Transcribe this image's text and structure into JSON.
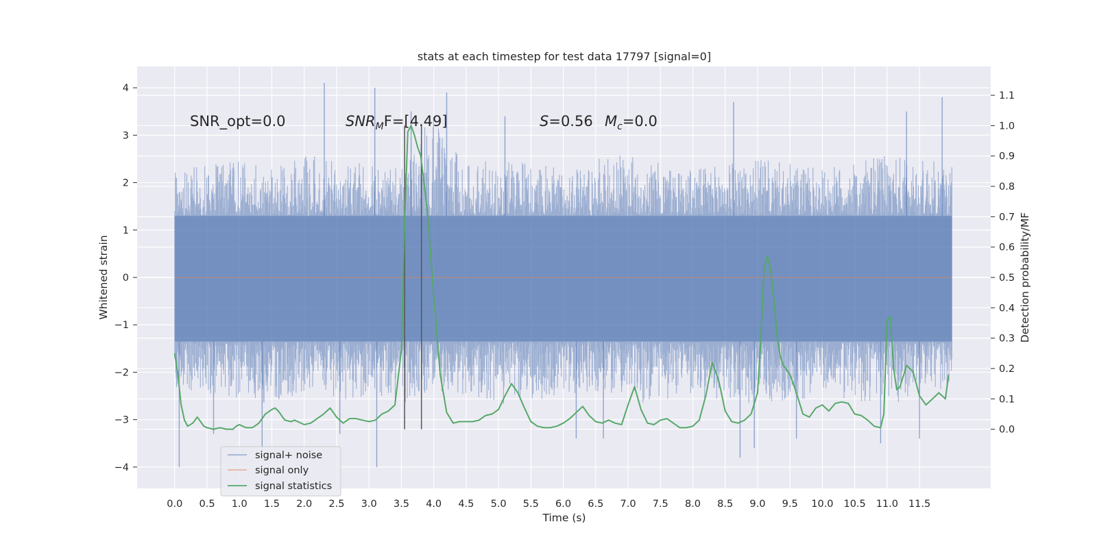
{
  "chart_data": {
    "type": "line",
    "title": "stats at each timestep for test data 17797 [signal=0]",
    "xlabel": "Time (s)",
    "ylabel": "Whitened strain",
    "ylabel_right": "Detection probability/MF",
    "xlim": [
      -0.58,
      12.6
    ],
    "ylim": [
      -4.45,
      4.45
    ],
    "ylim_right": [
      -0.195,
      1.195
    ],
    "x_ticks": [
      "0.0",
      "0.5",
      "1.0",
      "1.5",
      "2.0",
      "2.5",
      "3.0",
      "3.5",
      "4.0",
      "4.5",
      "5.0",
      "5.5",
      "6.0",
      "6.5",
      "7.0",
      "7.5",
      "8.0",
      "8.5",
      "9.0",
      "9.5",
      "10.0",
      "10.5",
      "11.0",
      "11.5"
    ],
    "y_ticks": [
      "−4",
      "−3",
      "−2",
      "−1",
      "0",
      "1",
      "2",
      "3",
      "4"
    ],
    "y_ticks_right": [
      "0.0",
      "0.1",
      "0.2",
      "0.3",
      "0.4",
      "0.5",
      "0.6",
      "0.7",
      "0.8",
      "0.9",
      "1.0",
      "1.1"
    ],
    "grid": true,
    "legend_position": "lower-left",
    "annotations": {
      "snr_opt": "SNR_opt=0.0",
      "snr_mf_main": "SNR",
      "snr_mf_sub": "M",
      "snr_mf_rest": "F=[4.49]",
      "s_label": "S",
      "s_value": "=0.56",
      "mc_main": "M",
      "mc_sub": "c",
      "mc_value": "=0.0"
    },
    "vertical_lines": [
      3.55,
      3.81
    ],
    "series": [
      {
        "name": "signal+ noise",
        "color": "#4c72b0",
        "axis": "left",
        "duration": 12.0,
        "band_low": -1.35,
        "band_high": 1.3,
        "envelope_high": [
          2.3,
          2.4,
          2.5,
          2.3,
          2.6,
          2.5,
          2.4,
          2.3,
          3.5,
          2.4,
          2.5,
          2.4,
          2.3,
          2.5,
          2.6,
          2.4,
          2.3,
          2.4,
          2.5,
          2.4,
          2.3,
          2.4,
          2.6,
          2.5,
          2.4
        ],
        "envelope_low": [
          -2.3,
          -2.5,
          -2.6,
          -2.7,
          -2.4,
          -2.6,
          -2.5,
          -2.7,
          -2.4,
          -2.5,
          -2.7,
          -2.6,
          -2.5,
          -2.4,
          -2.6,
          -2.7,
          -2.5,
          -2.6,
          -2.7,
          -2.6,
          -2.5,
          -2.6,
          -2.7,
          -2.5,
          -2.4
        ],
        "spikes": [
          [
            0.07,
            -4.0
          ],
          [
            0.6,
            -3.3
          ],
          [
            1.35,
            -3.6
          ],
          [
            2.31,
            4.1
          ],
          [
            2.55,
            -3.3
          ],
          [
            3.09,
            4.0
          ],
          [
            3.12,
            -4.0
          ],
          [
            3.65,
            3.5
          ],
          [
            4.2,
            3.9
          ],
          [
            5.1,
            3.4
          ],
          [
            6.2,
            -3.4
          ],
          [
            6.62,
            -3.4
          ],
          [
            8.63,
            3.7
          ],
          [
            8.73,
            -3.8
          ],
          [
            8.95,
            -3.6
          ],
          [
            9.6,
            -3.4
          ],
          [
            10.9,
            -3.5
          ],
          [
            11.3,
            3.5
          ],
          [
            11.5,
            -3.4
          ],
          [
            11.85,
            3.8
          ]
        ]
      },
      {
        "name": "signal only",
        "color": "#dd8452",
        "axis": "left",
        "x": [
          0,
          12
        ],
        "values": [
          0,
          0
        ]
      },
      {
        "name": "signal statistics",
        "color": "#55a868",
        "axis": "right",
        "x": [
          0.0,
          0.05,
          0.1,
          0.15,
          0.2,
          0.28,
          0.35,
          0.45,
          0.5,
          0.6,
          0.7,
          0.8,
          0.9,
          0.95,
          1.0,
          1.05,
          1.1,
          1.2,
          1.3,
          1.4,
          1.5,
          1.55,
          1.6,
          1.7,
          1.8,
          1.85,
          1.9,
          2.0,
          2.1,
          2.2,
          2.3,
          2.4,
          2.5,
          2.6,
          2.7,
          2.8,
          2.9,
          3.0,
          3.1,
          3.2,
          3.3,
          3.4,
          3.5,
          3.55,
          3.6,
          3.65,
          3.7,
          3.75,
          3.8,
          3.9,
          4.0,
          4.1,
          4.2,
          4.3,
          4.4,
          4.5,
          4.6,
          4.7,
          4.8,
          4.9,
          5.0,
          5.1,
          5.2,
          5.3,
          5.4,
          5.5,
          5.6,
          5.7,
          5.8,
          5.9,
          6.0,
          6.1,
          6.2,
          6.3,
          6.4,
          6.5,
          6.6,
          6.7,
          6.8,
          6.9,
          7.0,
          7.1,
          7.2,
          7.3,
          7.4,
          7.5,
          7.6,
          7.7,
          7.8,
          7.9,
          8.0,
          8.1,
          8.2,
          8.3,
          8.4,
          8.5,
          8.6,
          8.7,
          8.8,
          8.9,
          9.0,
          9.05,
          9.1,
          9.15,
          9.2,
          9.25,
          9.3,
          9.35,
          9.4,
          9.5,
          9.6,
          9.7,
          9.8,
          9.9,
          10.0,
          10.1,
          10.2,
          10.3,
          10.4,
          10.5,
          10.6,
          10.7,
          10.8,
          10.9,
          10.95,
          11.0,
          11.05,
          11.1,
          11.15,
          11.2,
          11.3,
          11.4,
          11.5,
          11.6,
          11.7,
          11.8,
          11.9,
          11.95
        ],
        "values": [
          0.25,
          0.18,
          0.08,
          0.03,
          0.01,
          0.02,
          0.04,
          0.01,
          0.005,
          0.0,
          0.005,
          0.0,
          0.0,
          0.01,
          0.015,
          0.01,
          0.005,
          0.005,
          0.02,
          0.05,
          0.065,
          0.07,
          0.06,
          0.03,
          0.025,
          0.03,
          0.025,
          0.015,
          0.02,
          0.035,
          0.05,
          0.07,
          0.04,
          0.02,
          0.035,
          0.035,
          0.03,
          0.025,
          0.03,
          0.05,
          0.06,
          0.08,
          0.26,
          0.68,
          0.98,
          1.0,
          0.97,
          0.93,
          0.9,
          0.72,
          0.44,
          0.18,
          0.055,
          0.02,
          0.025,
          0.025,
          0.025,
          0.03,
          0.045,
          0.05,
          0.065,
          0.11,
          0.15,
          0.12,
          0.07,
          0.025,
          0.01,
          0.005,
          0.005,
          0.01,
          0.02,
          0.035,
          0.055,
          0.075,
          0.045,
          0.025,
          0.02,
          0.03,
          0.02,
          0.015,
          0.08,
          0.14,
          0.065,
          0.02,
          0.015,
          0.03,
          0.035,
          0.02,
          0.005,
          0.005,
          0.01,
          0.03,
          0.11,
          0.22,
          0.16,
          0.06,
          0.025,
          0.02,
          0.03,
          0.05,
          0.12,
          0.3,
          0.53,
          0.57,
          0.53,
          0.43,
          0.31,
          0.24,
          0.21,
          0.18,
          0.12,
          0.05,
          0.04,
          0.07,
          0.08,
          0.06,
          0.085,
          0.09,
          0.085,
          0.05,
          0.045,
          0.03,
          0.01,
          0.005,
          0.05,
          0.36,
          0.37,
          0.2,
          0.13,
          0.14,
          0.21,
          0.19,
          0.11,
          0.08,
          0.1,
          0.12,
          0.1,
          0.18
        ]
      }
    ]
  }
}
